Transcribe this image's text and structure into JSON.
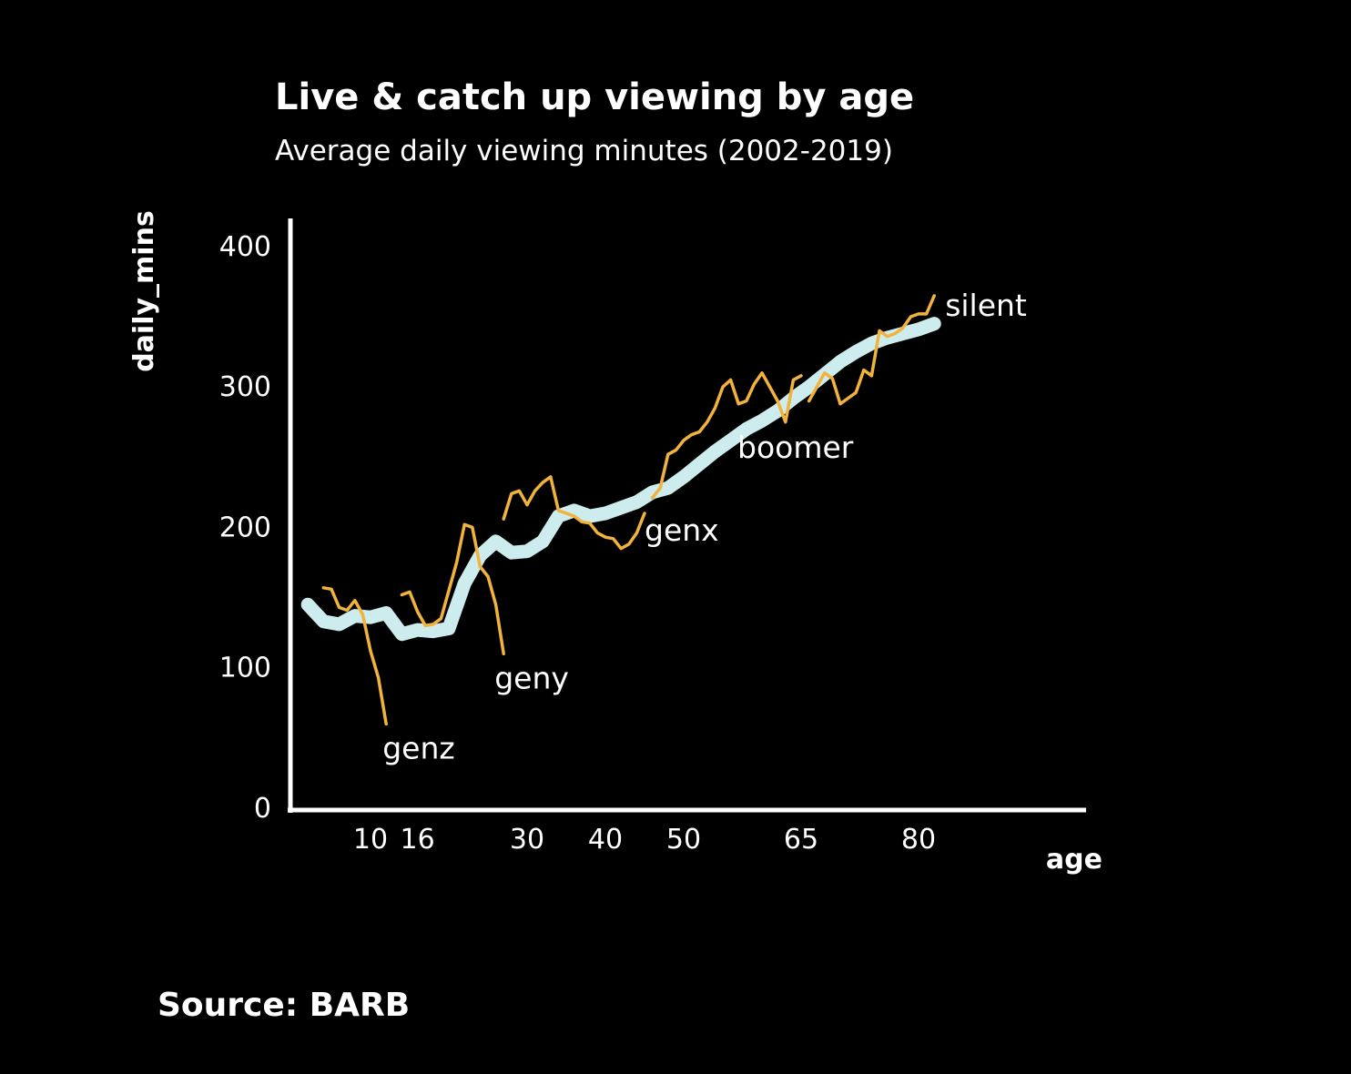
{
  "chart_data": {
    "type": "line",
    "title": "Live & catch up viewing by age",
    "subtitle": "Average daily viewing minutes (2002-2019)",
    "xlabel": "age",
    "ylabel": "daily_mins",
    "xlim": [
      0,
      100
    ],
    "ylim": [
      0,
      420
    ],
    "x_ticks": [
      10,
      16,
      30,
      40,
      50,
      65,
      80
    ],
    "y_ticks": [
      0,
      100,
      200,
      300,
      400
    ],
    "grid": false,
    "legend": "none",
    "source": "Source: BARB",
    "colors": {
      "background": "#000000",
      "trend": "#cdeced",
      "series": "#f2b33d",
      "text": "#ffffff"
    },
    "trend": {
      "x": [
        2,
        4,
        6,
        8,
        10,
        12,
        14,
        16,
        18,
        20,
        22,
        24,
        26,
        28,
        30,
        32,
        34,
        36,
        38,
        40,
        42,
        44,
        46,
        48,
        50,
        52,
        54,
        56,
        58,
        60,
        62,
        64,
        66,
        68,
        70,
        72,
        74,
        76,
        78,
        80,
        82
      ],
      "y": [
        145,
        133,
        131,
        137,
        136,
        139,
        124,
        127,
        126,
        128,
        160,
        180,
        190,
        182,
        183,
        190,
        208,
        212,
        208,
        210,
        214,
        218,
        225,
        228,
        236,
        245,
        254,
        262,
        270,
        276,
        283,
        292,
        300,
        309,
        318,
        325,
        331,
        335,
        338,
        341,
        345
      ]
    },
    "series": [
      {
        "name": "genz",
        "x": [
          4,
          5,
          6,
          7,
          8,
          9,
          10,
          11,
          12
        ],
        "y": [
          157,
          156,
          143,
          141,
          148,
          138,
          112,
          93,
          60
        ]
      },
      {
        "name": "geny",
        "x": [
          14,
          15,
          16,
          17,
          18,
          19,
          20,
          21,
          22,
          23,
          24,
          25,
          26,
          27
        ],
        "y": [
          152,
          154,
          140,
          130,
          131,
          135,
          155,
          175,
          202,
          200,
          172,
          165,
          145,
          110
        ]
      },
      {
        "name": "genx",
        "x": [
          27,
          28,
          29,
          30,
          31,
          32,
          33,
          34,
          35,
          36,
          37,
          38,
          39,
          40,
          41,
          42,
          43,
          44,
          45
        ],
        "y": [
          206,
          224,
          226,
          216,
          226,
          232,
          236,
          212,
          210,
          208,
          204,
          203,
          196,
          193,
          192,
          185,
          188,
          196,
          210
        ]
      },
      {
        "name": "boomer",
        "x": [
          46,
          47,
          48,
          49,
          50,
          51,
          52,
          53,
          54,
          55,
          56,
          57,
          58,
          59,
          60,
          61,
          62,
          63,
          64,
          65
        ],
        "y": [
          221,
          228,
          252,
          255,
          262,
          266,
          268,
          275,
          285,
          300,
          305,
          288,
          290,
          302,
          310,
          300,
          290,
          275,
          305,
          308
        ]
      },
      {
        "name": "silent",
        "x": [
          66,
          67,
          68,
          69,
          70,
          71,
          72,
          73,
          74,
          75,
          76,
          77,
          78,
          79,
          80,
          81,
          82
        ],
        "y": [
          290,
          300,
          310,
          306,
          288,
          292,
          296,
          312,
          308,
          340,
          336,
          338,
          342,
          350,
          352,
          352,
          365
        ]
      }
    ],
    "series_labels": [
      "genz",
      "geny",
      "genx",
      "boomer",
      "silent"
    ]
  }
}
